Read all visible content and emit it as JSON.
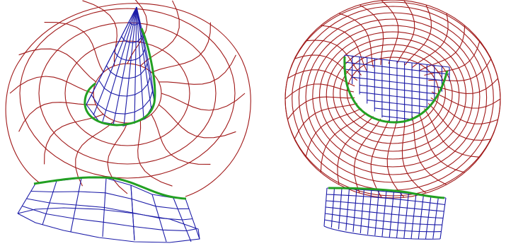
{
  "colors": {
    "background": "#ffffff",
    "torus_wire": "#a01818",
    "patch_wire": "#1c1ca8",
    "intersection_curve": "#22a022"
  },
  "panels": [
    {
      "id": "left",
      "objects": [
        "torus-surface",
        "cone-patch",
        "lower-cone-band",
        "intersection-curve"
      ]
    },
    {
      "id": "right",
      "objects": [
        "torus-surface",
        "cylinder-patch",
        "lower-cylinder-band",
        "intersection-curve"
      ]
    }
  ]
}
